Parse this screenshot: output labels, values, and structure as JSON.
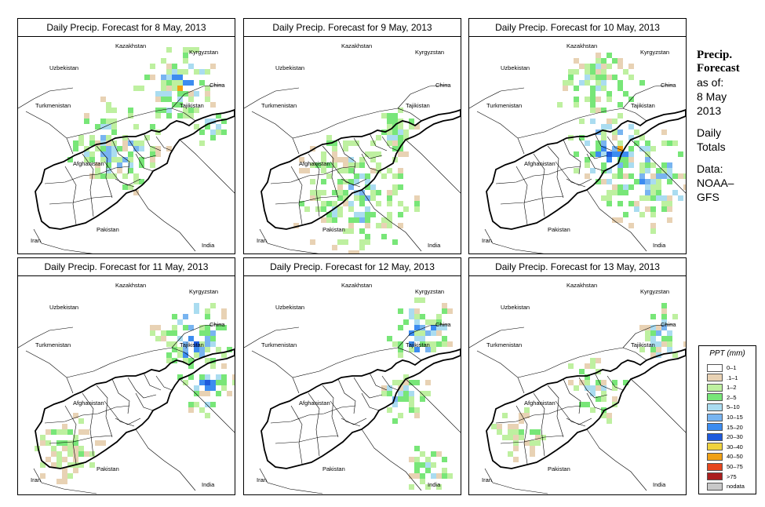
{
  "panels": [
    {
      "title": "Daily Precip. Forecast for  8 May, 2013"
    },
    {
      "title": "Daily Precip. Forecast for  9 May, 2013"
    },
    {
      "title": "Daily Precip. Forecast for  10 May, 2013"
    },
    {
      "title": "Daily Precip. Forecast for  11 May, 2013"
    },
    {
      "title": "Daily Precip. Forecast for  12 May, 2013"
    },
    {
      "title": "Daily Precip. Forecast for  13 May, 2013"
    }
  ],
  "labels": {
    "uzbekistan": "Uzbekistan",
    "kazakhstan": "Kazakhstan",
    "kyrgyzstan": "Kyrgyzstan",
    "china": "China",
    "tajikistan": "Tajikistan",
    "turkmenistan": "Turkmenistan",
    "afghanistan": "Afghanistan",
    "pakistan": "Pakistan",
    "iran": "Iran",
    "india": "India"
  },
  "side": {
    "title1": "Precip.",
    "title2": "Forecast",
    "asof": "as of:",
    "date1": "8 May",
    "date2": "2013",
    "daily": "Daily",
    "totals": "Totals",
    "data1": "Data:",
    "data2": "NOAA–",
    "data3": "GFS"
  },
  "legend": {
    "title": "PPT (mm)",
    "items": [
      {
        "label": "0–1",
        "color": "#ffffff"
      },
      {
        "label": ".1–1",
        "color": "#e8d2b4"
      },
      {
        "label": "1–2",
        "color": "#bef0a0"
      },
      {
        "label": "2–5",
        "color": "#78e678"
      },
      {
        "label": "5–10",
        "color": "#aadcf0"
      },
      {
        "label": "10–15",
        "color": "#78b4f0"
      },
      {
        "label": "15–20",
        "color": "#3c8cf0"
      },
      {
        "label": "20–30",
        "color": "#1e5adc"
      },
      {
        "label": "30–40",
        "color": "#f0d23c"
      },
      {
        "label": "40–50",
        "color": "#f0a014"
      },
      {
        "label": "50–75",
        "color": "#e6461e"
      },
      {
        "label": ">75",
        "color": "#aa1e1e"
      },
      {
        "label": "nodata",
        "color": "#c8c8c8"
      }
    ]
  }
}
